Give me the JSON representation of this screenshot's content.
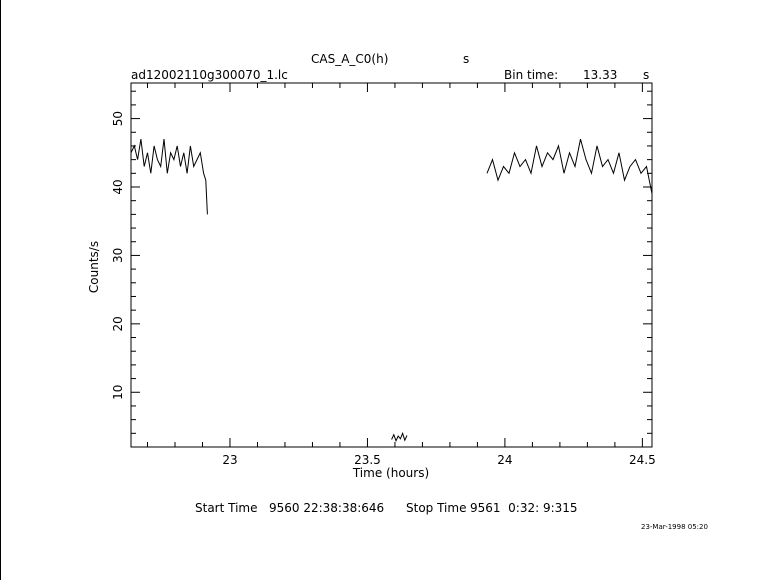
{
  "header": {
    "object": "CAS_A_C0(h)",
    "unit_s": "s",
    "file": "ad12002110g300070_1.lc",
    "bin_label": "Bin time:",
    "bin_value": "13.33",
    "bin_unit": "s"
  },
  "footer": {
    "start_label": "Start Time",
    "start_value": "9560 22:38:38:646",
    "stop_label": "Stop Time",
    "stop_value": "9561  0:32: 9:315",
    "date_stamp": "23-Mar-1998 05:20"
  },
  "chart_data": {
    "type": "line",
    "xlabel": "Time (hours)",
    "ylabel": "Counts/s",
    "xlim": [
      22.64,
      24.535
    ],
    "ylim": [
      2,
      55.2
    ],
    "x_ticks": [
      {
        "v": 23,
        "label": "23"
      },
      {
        "v": 23.5,
        "label": "23.5"
      },
      {
        "v": 24,
        "label": "24"
      },
      {
        "v": 24.5,
        "label": "24.5"
      }
    ],
    "y_ticks": [
      {
        "v": 10,
        "label": "10"
      },
      {
        "v": 20,
        "label": "20"
      },
      {
        "v": 30,
        "label": "30"
      },
      {
        "v": 40,
        "label": "40"
      },
      {
        "v": 50,
        "label": "50"
      }
    ],
    "series": [
      {
        "x": [
          22.64,
          22.652,
          22.664,
          22.676,
          22.688,
          22.7,
          22.712,
          22.724,
          22.736,
          22.748,
          22.76,
          22.772,
          22.784,
          22.796,
          22.808,
          22.82,
          22.832,
          22.844,
          22.856,
          22.868,
          22.88,
          22.892,
          22.904,
          22.912,
          22.918
        ],
        "y": [
          45,
          46,
          44,
          47,
          43,
          45,
          42,
          46,
          44,
          43,
          47,
          42,
          45,
          44,
          46,
          43,
          45,
          42,
          46,
          43,
          44,
          45,
          42,
          41,
          36
        ]
      },
      {
        "x": [
          23.588,
          23.596,
          23.604,
          23.612,
          23.62,
          23.628,
          23.636,
          23.644
        ],
        "y": [
          3.1,
          3.8,
          2.9,
          3.6,
          3.2,
          4.0,
          3.0,
          3.7
        ]
      },
      {
        "x": [
          23.935,
          23.955,
          23.975,
          23.995,
          24.015,
          24.035,
          24.055,
          24.075,
          24.095,
          24.115,
          24.135,
          24.155,
          24.175,
          24.195,
          24.215,
          24.235,
          24.255,
          24.275,
          24.295,
          24.315,
          24.335,
          24.355,
          24.375,
          24.395,
          24.415,
          24.435,
          24.455,
          24.475,
          24.495,
          24.515,
          24.535
        ],
        "y": [
          42,
          44,
          41,
          43,
          42,
          45,
          43,
          44,
          42,
          46,
          43,
          45,
          44,
          46,
          42,
          45,
          43,
          47,
          44,
          42,
          46,
          43,
          44,
          42,
          45,
          41,
          43,
          44,
          42,
          43,
          39
        ]
      }
    ]
  }
}
